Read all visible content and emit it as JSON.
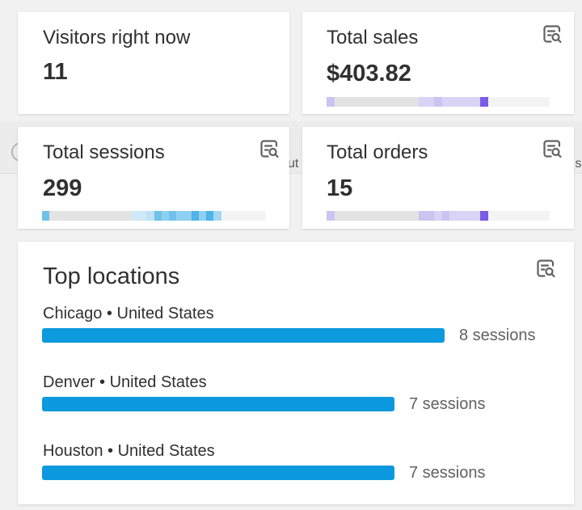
{
  "colors": {
    "bar_blue": "#0c99dd",
    "spark_base": "#e3e3e3",
    "spark_light": "#f4f4f5"
  },
  "icons": {
    "insight": "document-magnifier-icon",
    "background_circle": "circle-icon"
  },
  "background": {
    "partial_text_1": "ut",
    "partial_text_2": "ıs"
  },
  "visitors": {
    "title": "Visitors right now",
    "value": "11"
  },
  "sales": {
    "title": "Total sales",
    "value": "$403.82"
  },
  "sessions": {
    "title": "Total sessions",
    "value": "299"
  },
  "orders": {
    "title": "Total orders",
    "value": "15"
  },
  "locations": {
    "title": "Top locations",
    "max_sessions": 8,
    "items": [
      {
        "label": "Chicago • United States",
        "sessions": 8,
        "count_label": "8 sessions"
      },
      {
        "label": "Denver • United States",
        "sessions": 7,
        "count_label": "7 sessions"
      },
      {
        "label": "Houston • United States",
        "sessions": 7,
        "count_label": "7 sessions"
      }
    ]
  },
  "sparklines": {
    "sales": [
      "#cbc3f0",
      "#e3e3e3",
      "#e3e3e3",
      "#e3e3e3",
      "#e3e3e3",
      "#e3e3e3",
      "#e3e3e3",
      "#e3e3e3",
      "#e3e3e3",
      "#e3e3e3",
      "#e3e3e3",
      "#e3e3e3",
      "#d9d3f5",
      "#d9d3f5",
      "#cbc3f0",
      "#d9d3f5",
      "#d9d3f5",
      "#d9d3f5",
      "#d9d3f5",
      "#d9d3f5",
      "#7c5ce6",
      "#f4f4f5",
      "#f4f4f5",
      "#f4f4f5",
      "#f4f4f5",
      "#f4f4f5",
      "#f4f4f5",
      "#f4f4f5",
      "#f4f4f5"
    ],
    "sessions": [
      "#6fc2ec",
      "#e3e3e3",
      "#e3e3e3",
      "#e3e3e3",
      "#e3e3e3",
      "#e3e3e3",
      "#e3e3e3",
      "#e3e3e3",
      "#e3e3e3",
      "#e3e3e3",
      "#e3e3e3",
      "#e3e3e3",
      "#cfe9f7",
      "#cfe9f7",
      "#bfe2f5",
      "#6fc2ec",
      "#8fd0f1",
      "#6fc2ec",
      "#8fd0f1",
      "#8fd0f1",
      "#4fb4e8",
      "#8fd0f1",
      "#4fb4e8",
      "#a3d8f3",
      "#f4f4f5",
      "#f4f4f5",
      "#f4f4f5",
      "#f4f4f5",
      "#f4f4f5",
      "#f4f4f5"
    ],
    "orders": [
      "#cbc3f0",
      "#e3e3e3",
      "#e3e3e3",
      "#e3e3e3",
      "#e3e3e3",
      "#e3e3e3",
      "#e3e3e3",
      "#e3e3e3",
      "#e3e3e3",
      "#e3e3e3",
      "#e3e3e3",
      "#e3e3e3",
      "#cbc3f0",
      "#cbc3f0",
      "#d9d3f5",
      "#cbc3f0",
      "#d9d3f5",
      "#d9d3f5",
      "#d9d3f5",
      "#d9d3f5",
      "#7c5ce6",
      "#f4f4f5",
      "#f4f4f5",
      "#f4f4f5",
      "#f4f4f5",
      "#f4f4f5",
      "#f4f4f5",
      "#f4f4f5",
      "#f4f4f5"
    ]
  }
}
